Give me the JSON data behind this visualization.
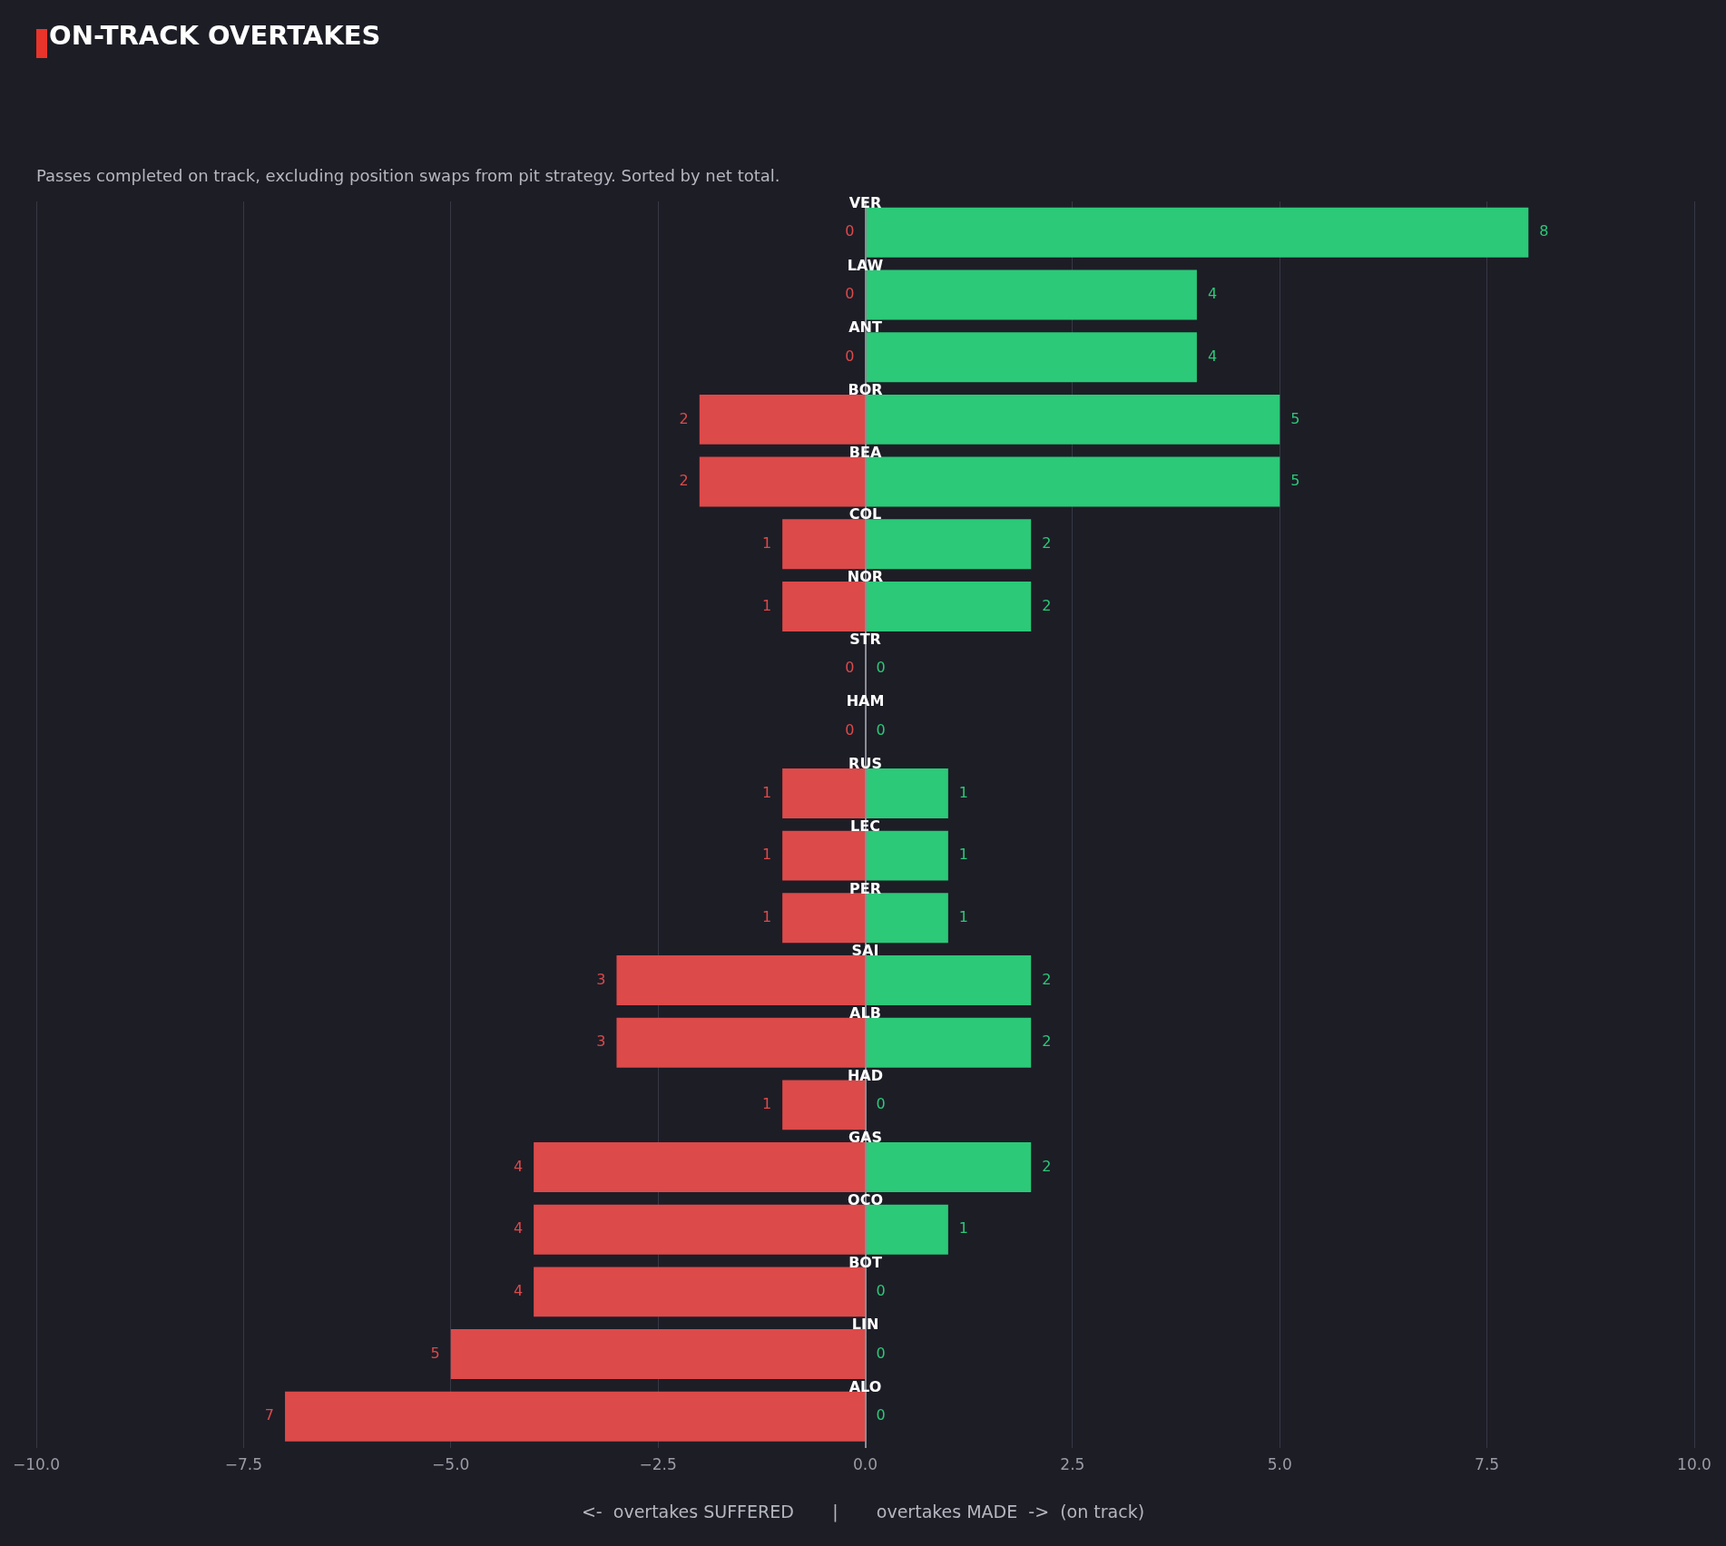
{
  "chart_data": {
    "type": "bar",
    "orientation": "horizontal",
    "title": "ON-TRACK OVERTAKES",
    "subtitle": "Passes completed on track, excluding position swaps from pit strategy. Sorted by net total.",
    "xlabel": "<-  overtakes SUFFERED       |       overtakes MADE  ->  (on track)",
    "categories": [
      "VER",
      "LAW",
      "ANT",
      "BOR",
      "BEA",
      "COL",
      "NOR",
      "STR",
      "HAM",
      "RUS",
      "LEC",
      "PER",
      "SAI",
      "ALB",
      "HAD",
      "GAS",
      "OCO",
      "BOT",
      "LIN",
      "ALO"
    ],
    "series": [
      {
        "color": "#dc4a4a",
        "base": [
          null,
          null,
          null,
          -2,
          -2,
          -1,
          -1,
          null,
          null,
          -1,
          -1,
          -1,
          -3,
          -3,
          -1,
          -4,
          -4,
          -4,
          -5,
          -7
        ],
        "values": [
          0,
          0,
          0,
          2,
          2,
          1,
          1,
          0,
          0,
          1,
          1,
          1,
          3,
          3,
          1,
          4,
          4,
          4,
          5,
          7
        ],
        "value_labels": [
          "0",
          "0",
          "0",
          "2",
          "2",
          "1",
          "1",
          "0",
          "0",
          "1",
          "1",
          "1",
          "3",
          "3",
          "1",
          "4",
          "4",
          "4",
          "5",
          "7"
        ]
      },
      {
        "color": "#2bc978",
        "values": [
          8,
          4,
          4,
          5,
          5,
          2,
          2,
          0,
          0,
          1,
          1,
          1,
          2,
          2,
          0,
          2,
          1,
          0,
          0,
          0
        ],
        "value_labels": [
          "8",
          "4",
          "4",
          "5",
          "5",
          "2",
          "2",
          "0",
          "0",
          "1",
          "1",
          "1",
          "2",
          "2",
          "0",
          "2",
          "1",
          "0",
          "0",
          "0"
        ]
      }
    ],
    "xlim": [
      -10,
      10
    ],
    "xticks": [
      {
        "value": -10,
        "label": "−10.0"
      },
      {
        "value": -7.5,
        "label": "−7.5"
      },
      {
        "value": -5,
        "label": "−5.0"
      },
      {
        "value": -2.5,
        "label": "−2.5"
      },
      {
        "value": 0,
        "label": "0.0"
      },
      {
        "value": 2.5,
        "label": "2.5"
      },
      {
        "value": 5,
        "label": "5.0"
      },
      {
        "value": 7.5,
        "label": "7.5"
      },
      {
        "value": 10,
        "label": "10.0"
      }
    ],
    "grid": "x"
  }
}
